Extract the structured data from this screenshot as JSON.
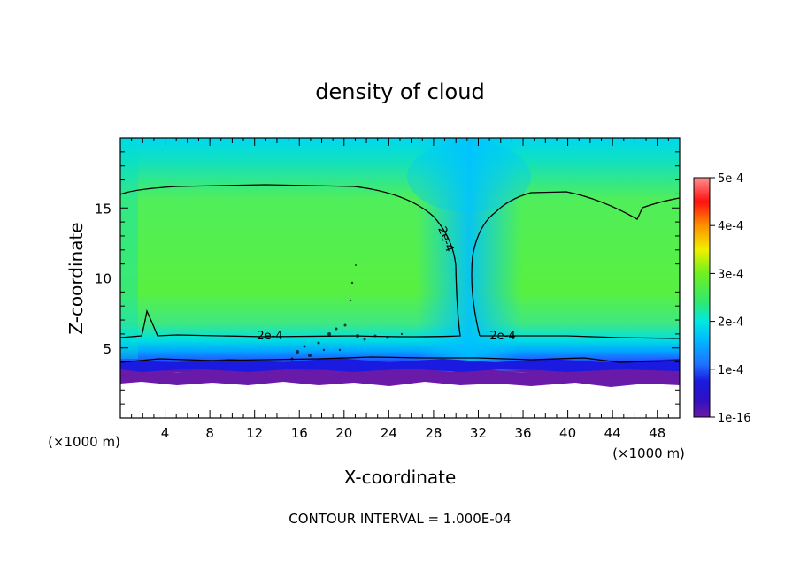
{
  "chart_data": {
    "type": "heatmap",
    "title": "density of cloud",
    "xlabel": "X-coordinate",
    "ylabel": "Z-coordinate",
    "x_unit": "(×1000 m)",
    "y_unit": "(×1000 m)",
    "xlim": [
      0,
      50
    ],
    "ylim": [
      0,
      20
    ],
    "x_ticks": [
      4,
      8,
      12,
      16,
      20,
      24,
      28,
      32,
      36,
      40,
      44,
      48
    ],
    "y_ticks": [
      5,
      10,
      15
    ],
    "grid": false,
    "footnote": "CONTOUR INTERVAL = 1.000E-04",
    "contour_label": "2e-4",
    "contour_label_count": 4,
    "colorbar": {
      "labels": [
        "1e-16",
        "1e-4",
        "2e-4",
        "3e-4",
        "4e-4",
        "5e-4"
      ],
      "values": [
        1e-16,
        0.0001,
        0.0002,
        0.0003,
        0.0004,
        0.0005
      ],
      "colors": [
        "#6a1aa8",
        "#1a1ae0",
        "#00a8ff",
        "#00f0d0",
        "#30e060",
        "#60f020",
        "#f0f000",
        "#ff9000",
        "#ff1010",
        "#ff9090"
      ]
    },
    "description_levels": {
      "cloud_base_z": 3,
      "contour_2e-4_top_z": 16.6,
      "contour_2e-4_bottom_z": 5.8,
      "updraft_gap_x": 31
    }
  }
}
